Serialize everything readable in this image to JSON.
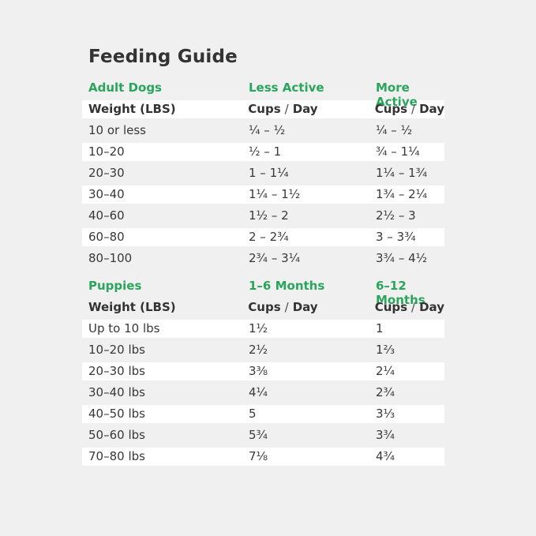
{
  "title": "Feeding Guide",
  "colors": {
    "accent_green": "#29a55c",
    "text_dark": "#333333",
    "page_background": "#f0f0f0",
    "row_highlight": "#ffffff"
  },
  "units": {
    "cups": "Cups",
    "slash": "/",
    "day": "Day"
  },
  "adult": {
    "section_label": "Adult Dogs",
    "columns": [
      "Less Active",
      "More Active"
    ],
    "weight_header": "Weight (LBS)",
    "rows": [
      {
        "weight": "10 or less",
        "less_active": "¼ – ½",
        "more_active": "¼ – ½"
      },
      {
        "weight": "10–20",
        "less_active": "½ – 1",
        "more_active": "¾ – 1¼"
      },
      {
        "weight": "20–30",
        "less_active": "1 – 1¼",
        "more_active": "1¼ – 1¾"
      },
      {
        "weight": "30–40",
        "less_active": "1¼ – 1½",
        "more_active": "1¾ – 2¼"
      },
      {
        "weight": "40–60",
        "less_active": "1½ – 2",
        "more_active": "2½ – 3"
      },
      {
        "weight": "60–80",
        "less_active": "2 – 2¾",
        "more_active": "3 – 3¾"
      },
      {
        "weight": "80–100",
        "less_active": "2¾ – 3¼",
        "more_active": "3¾ – 4½"
      }
    ]
  },
  "puppies": {
    "section_label": "Puppies",
    "columns": [
      "1–6 Months",
      "6–12 Months"
    ],
    "weight_header": "Weight (LBS)",
    "rows": [
      {
        "weight": "Up to 10 lbs",
        "months_1_6": "1½",
        "months_6_12": "1"
      },
      {
        "weight": "10–20 lbs",
        "months_1_6": "2½",
        "months_6_12": "1⅔"
      },
      {
        "weight": "20–30 lbs",
        "months_1_6": "3⅜",
        "months_6_12": "2¼"
      },
      {
        "weight": "30–40 lbs",
        "months_1_6": "4¼",
        "months_6_12": "2¾"
      },
      {
        "weight": "40–50 lbs",
        "months_1_6": "5",
        "months_6_12": "3⅓"
      },
      {
        "weight": "50–60 lbs",
        "months_1_6": "5¾",
        "months_6_12": "3¾"
      },
      {
        "weight": "70–80 lbs",
        "months_1_6": "7⅛",
        "months_6_12": "4¾"
      }
    ]
  }
}
